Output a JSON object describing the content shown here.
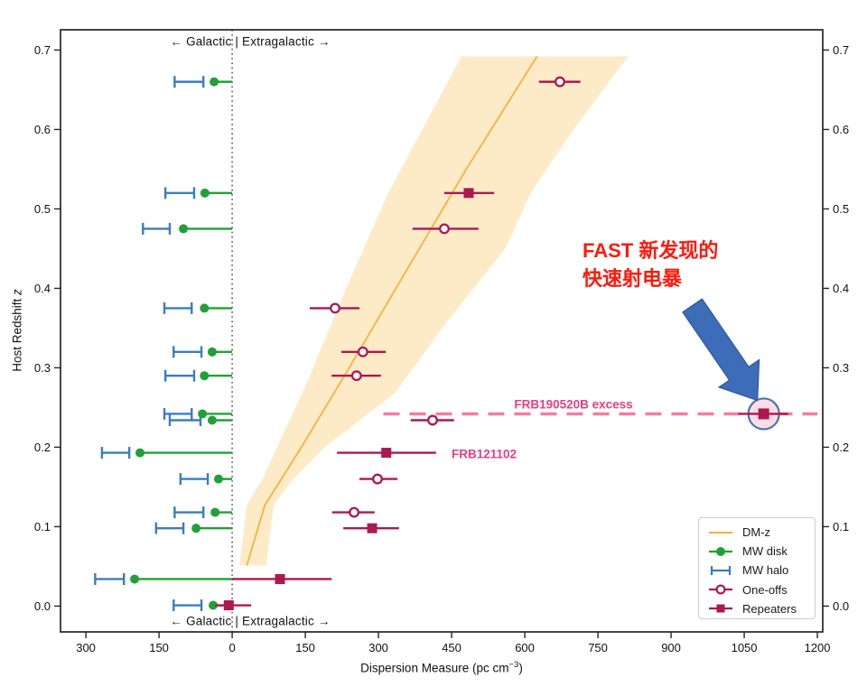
{
  "colors": {
    "frame": "#262626",
    "disk_green": "#22a038",
    "halo_blue": "#3a7dbf",
    "burst_crimson": "#ad1850",
    "dmz_line": "#f7b13f",
    "dmz_band": "#fdebc8",
    "excess_dash": "#f27ca6",
    "frb_label_pink": "#e83e80",
    "zero_line_gray": "#555555",
    "annotation_red": "#fc1a0c",
    "arrow_blue": "#3d6cb8",
    "arrow_edge": "#31599f",
    "highlight_fill": "#fbdee4",
    "highlight_ring": "#4a73b5"
  },
  "chart_data": {
    "type": "scatter",
    "xlabel_pre": "Dispersion Measure (pc cm",
    "xlabel_sup": "−3",
    "xlabel_post": ")",
    "ylabel_pre": "Host Redshift ",
    "ylabel_italic": "z",
    "x_axis": {
      "range": [
        -352,
        1211
      ],
      "ticks": [
        {
          "value": -300,
          "label": "300"
        },
        {
          "value": -150,
          "label": "150"
        },
        {
          "value": 0,
          "label": "0"
        },
        {
          "value": 150,
          "label": "150"
        },
        {
          "value": 300,
          "label": "300"
        },
        {
          "value": 450,
          "label": "450"
        },
        {
          "value": 600,
          "label": "600"
        },
        {
          "value": 750,
          "label": "750"
        },
        {
          "value": 900,
          "label": "900"
        },
        {
          "value": 1050,
          "label": "1050"
        },
        {
          "value": 1200,
          "label": "1200"
        }
      ]
    },
    "y_axis": {
      "range": [
        -0.0325,
        0.7255
      ],
      "mirrored_right": true,
      "ticks": [
        {
          "value": 0.0,
          "label": "0.0"
        },
        {
          "value": 0.1,
          "label": "0.1"
        },
        {
          "value": 0.2,
          "label": "0.2"
        },
        {
          "value": 0.3,
          "label": "0.3"
        },
        {
          "value": 0.4,
          "label": "0.4"
        },
        {
          "value": 0.5,
          "label": "0.5"
        },
        {
          "value": 0.6,
          "label": "0.6"
        },
        {
          "value": 0.7,
          "label": "0.7"
        }
      ]
    },
    "zero_line_dm": 0,
    "annotations": {
      "galactic_divider": "←  Galactic | Extragalactic  →",
      "fast_line1": "FAST 新发现的",
      "fast_line2": "快速射电暴",
      "frb121102": "FRB121102"
    },
    "excess_line": {
      "label": "FRB190520B excess",
      "z": 0.242,
      "dm_start": 310,
      "dm_end": 1200
    },
    "dm_z_relation": {
      "legend_label": "DM-z",
      "line": [
        [
          0.051,
          30
        ],
        [
          0.127,
          67
        ],
        [
          0.2,
          142
        ],
        [
          0.3,
          240
        ],
        [
          0.42,
          355
        ],
        [
          0.55,
          480
        ],
        [
          0.692,
          625
        ]
      ],
      "band": [
        [
          0.051,
          15
        ],
        [
          0.127,
          30
        ],
        [
          0.16,
          62
        ],
        [
          0.274,
          148
        ],
        [
          0.399,
          233
        ],
        [
          0.52,
          320
        ],
        [
          0.6,
          390
        ],
        [
          0.692,
          470
        ],
        [
          0.692,
          812
        ],
        [
          0.6,
          700
        ],
        [
          0.52,
          612
        ],
        [
          0.45,
          560
        ],
        [
          0.35,
          430
        ],
        [
          0.269,
          335
        ],
        [
          0.2,
          190
        ],
        [
          0.16,
          125
        ],
        [
          0.127,
          85
        ],
        [
          0.051,
          70
        ]
      ]
    },
    "series": {
      "mw_disk": {
        "label": "MW disk",
        "points": [
          {
            "z": 0.66,
            "dm": -37
          },
          {
            "z": 0.52,
            "dm": -56
          },
          {
            "z": 0.475,
            "dm": -100
          },
          {
            "z": 0.375,
            "dm": -57
          },
          {
            "z": 0.32,
            "dm": -41
          },
          {
            "z": 0.29,
            "dm": -57
          },
          {
            "z": 0.242,
            "dm": -61
          },
          {
            "z": 0.234,
            "dm": -41
          },
          {
            "z": 0.193,
            "dm": -189
          },
          {
            "z": 0.16,
            "dm": -28
          },
          {
            "z": 0.118,
            "dm": -35
          },
          {
            "z": 0.098,
            "dm": -74
          },
          {
            "z": 0.034,
            "dm": -200
          },
          {
            "z": 0.001,
            "dm": -39
          }
        ]
      },
      "mw_halo": {
        "label": "MW halo",
        "points": [
          {
            "z": 0.66,
            "dm_lo": -118,
            "dm_hi": -59
          },
          {
            "z": 0.52,
            "dm_lo": -137,
            "dm_hi": -78
          },
          {
            "z": 0.475,
            "dm_lo": -183,
            "dm_hi": -128
          },
          {
            "z": 0.375,
            "dm_lo": -139,
            "dm_hi": -83
          },
          {
            "z": 0.32,
            "dm_lo": -120,
            "dm_hi": -63
          },
          {
            "z": 0.29,
            "dm_lo": -137,
            "dm_hi": -78
          },
          {
            "z": 0.242,
            "dm_lo": -139,
            "dm_hi": -83
          },
          {
            "z": 0.234,
            "dm_lo": -128,
            "dm_hi": -65
          },
          {
            "z": 0.193,
            "dm_lo": -267,
            "dm_hi": -211
          },
          {
            "z": 0.16,
            "dm_lo": -106,
            "dm_hi": -50
          },
          {
            "z": 0.118,
            "dm_lo": -118,
            "dm_hi": -59
          },
          {
            "z": 0.098,
            "dm_lo": -156,
            "dm_hi": -100
          },
          {
            "z": 0.034,
            "dm_lo": -281,
            "dm_hi": -222
          },
          {
            "z": 0.001,
            "dm_lo": -120,
            "dm_hi": -63
          }
        ]
      },
      "one_offs": {
        "label": "One-offs",
        "points": [
          {
            "z": 0.66,
            "dm": 672,
            "dm_lo": 629,
            "dm_hi": 714
          },
          {
            "z": 0.475,
            "dm": 435,
            "dm_lo": 370,
            "dm_hi": 505
          },
          {
            "z": 0.375,
            "dm": 211,
            "dm_lo": 159,
            "dm_hi": 261
          },
          {
            "z": 0.32,
            "dm": 268,
            "dm_lo": 224,
            "dm_hi": 315
          },
          {
            "z": 0.29,
            "dm": 255,
            "dm_lo": 204,
            "dm_hi": 305
          },
          {
            "z": 0.234,
            "dm": 411,
            "dm_lo": 366,
            "dm_hi": 455
          },
          {
            "z": 0.16,
            "dm": 298,
            "dm_lo": 261,
            "dm_hi": 339
          },
          {
            "z": 0.118,
            "dm": 250,
            "dm_lo": 205,
            "dm_hi": 292
          }
        ]
      },
      "repeaters": {
        "label": "Repeaters",
        "points": [
          {
            "z": 0.52,
            "dm": 485,
            "dm_lo": 435,
            "dm_hi": 537
          },
          {
            "z": 0.242,
            "dm": 1090,
            "dm_lo": 1038,
            "dm_hi": 1140,
            "name": "FRB190520B",
            "highlighted": true
          },
          {
            "z": 0.193,
            "dm": 316,
            "dm_lo": 215,
            "dm_hi": 418,
            "name": "FRB121102"
          },
          {
            "z": 0.098,
            "dm": 287,
            "dm_lo": 228,
            "dm_hi": 342
          },
          {
            "z": 0.034,
            "dm": 98,
            "dm_lo": 0,
            "dm_hi": 204
          },
          {
            "z": 0.001,
            "dm": -7,
            "dm_lo": -35,
            "dm_hi": 39
          }
        ]
      }
    }
  }
}
